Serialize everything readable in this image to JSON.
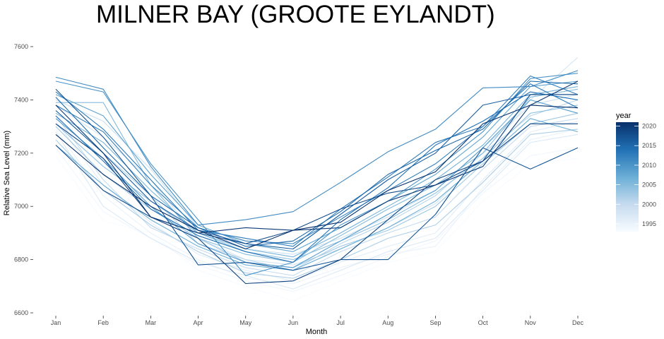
{
  "chart_data": {
    "type": "line",
    "title": "MILNER BAY (GROOTE EYLANDT)",
    "xlabel": "Month",
    "ylabel": "Relative Sea Level (mm)",
    "categories": [
      "Jan",
      "Feb",
      "Mar",
      "Apr",
      "May",
      "Jun",
      "Jul",
      "Aug",
      "Sep",
      "Oct",
      "Nov",
      "Dec"
    ],
    "ylim": [
      6600,
      7620
    ],
    "yticks": [
      6600,
      6800,
      7000,
      7200,
      7400,
      7600
    ],
    "ytick_labels": [
      "6600",
      "6800",
      "7000",
      "7200",
      "7400",
      "7600"
    ],
    "grid": false,
    "legend": {
      "title": "year",
      "position": "right",
      "type": "colorbar",
      "range": [
        1993,
        2021
      ],
      "ticks": [
        1995,
        2000,
        2005,
        2010,
        2015,
        2020
      ],
      "tick_labels": [
        "1995",
        "2000",
        "2005",
        "2010",
        "2015",
        "2020"
      ],
      "color_low": "#f7fbff",
      "color_high": "#08306b"
    },
    "series": [
      {
        "year": 1993,
        "values": [
          7190,
          6945,
          6900,
          6760,
          6700,
          6645,
          6720,
          6790,
          6830,
          7020,
          7160,
          7180
        ]
      },
      {
        "year": 1994,
        "values": [
          7220,
          6980,
          6880,
          6780,
          6720,
          6680,
          6740,
          6810,
          6870,
          7050,
          7190,
          7220
        ]
      },
      {
        "year": 1995,
        "values": [
          7290,
          7040,
          6900,
          6800,
          6730,
          6710,
          6770,
          6820,
          6850,
          7070,
          7250,
          7290
        ]
      },
      {
        "year": 1996,
        "values": [
          7320,
          7080,
          6940,
          6820,
          6760,
          6720,
          6790,
          6850,
          6900,
          7100,
          7280,
          7320
        ]
      },
      {
        "year": 1997,
        "values": [
          7280,
          7000,
          6880,
          6790,
          6740,
          6690,
          6760,
          6830,
          6880,
          7060,
          7240,
          7270
        ]
      },
      {
        "year": 1998,
        "values": [
          7380,
          7260,
          7100,
          6880,
          6800,
          6780,
          6840,
          6920,
          7010,
          7180,
          7400,
          7560
        ]
      },
      {
        "year": 1999,
        "values": [
          7400,
          7320,
          7140,
          6920,
          6840,
          6820,
          6880,
          6960,
          7060,
          7220,
          7380,
          7420
        ]
      },
      {
        "year": 2000,
        "values": [
          7340,
          7100,
          6920,
          6840,
          6770,
          6740,
          6830,
          6900,
          6960,
          7140,
          7300,
          7330
        ]
      },
      {
        "year": 2001,
        "values": [
          7360,
          7200,
          7040,
          6860,
          6800,
          6760,
          6860,
          6940,
          7040,
          7200,
          7340,
          7400
        ]
      },
      {
        "year": 2002,
        "values": [
          7250,
          7060,
          6930,
          6830,
          6750,
          6730,
          6800,
          6880,
          6930,
          7090,
          7270,
          7290
        ]
      },
      {
        "year": 2003,
        "values": [
          7300,
          7120,
          6990,
          6880,
          6790,
          6770,
          6850,
          6910,
          7000,
          7160,
          7310,
          7350
        ]
      },
      {
        "year": 2004,
        "values": [
          7310,
          7150,
          7020,
          6900,
          6830,
          6800,
          6870,
          6950,
          7050,
          7180,
          7350,
          7380
        ]
      },
      {
        "year": 2005,
        "values": [
          7390,
          7390,
          7080,
          6880,
          6820,
          6790,
          6890,
          6990,
          7080,
          7200,
          7410,
          7440
        ]
      },
      {
        "year": 2006,
        "values": [
          7350,
          7240,
          7060,
          6900,
          6840,
          6810,
          6900,
          7000,
          7100,
          7230,
          7420,
          7450
        ]
      },
      {
        "year": 2007,
        "values": [
          7230,
          7080,
          6950,
          6850,
          6780,
          6760,
          6840,
          6920,
          7020,
          7170,
          7330,
          7280
        ]
      },
      {
        "year": 2008,
        "values": [
          7420,
          7340,
          7120,
          6930,
          6860,
          6830,
          6920,
          7020,
          7120,
          7260,
          7450,
          7470
        ]
      },
      {
        "year": 2009,
        "values": [
          7330,
          7180,
          7000,
          6860,
          6790,
          6770,
          6870,
          6970,
          7060,
          7220,
          7400,
          7350
        ]
      },
      {
        "year": 2010,
        "values": [
          7470,
          7430,
          7160,
          6950,
          6740,
          6790,
          6930,
          7020,
          7140,
          7280,
          7480,
          7500
        ]
      },
      {
        "year": 2011,
        "values": [
          7485,
          7440,
          7150,
          6930,
          6950,
          6980,
          7090,
          7205,
          7290,
          7445,
          7450,
          7510
        ]
      },
      {
        "year": 2012,
        "values": [
          7380,
          7280,
          7080,
          6920,
          6870,
          6860,
          6960,
          7060,
          7160,
          7300,
          7490,
          7420
        ]
      },
      {
        "year": 2013,
        "values": [
          7430,
          7290,
          7100,
          6910,
          6880,
          6850,
          6990,
          7110,
          7240,
          7300,
          7460,
          7370
        ]
      },
      {
        "year": 2014,
        "values": [
          7340,
          7170,
          6990,
          6890,
          6830,
          6790,
          6950,
          7070,
          7230,
          7320,
          7430,
          7400
        ]
      },
      {
        "year": 2015,
        "values": [
          7410,
          7220,
          7040,
          6920,
          6850,
          6870,
          6980,
          7120,
          7210,
          7290,
          7470,
          7460
        ]
      },
      {
        "year": 2016,
        "values": [
          7360,
          7200,
          7020,
          6910,
          6860,
          6840,
          6970,
          7100,
          7200,
          7380,
          7420,
          7420
        ]
      },
      {
        "year": 2017,
        "values": [
          7440,
          7260,
          7040,
          6780,
          6790,
          6760,
          6800,
          6800,
          6970,
          7220,
          7140,
          7220
        ]
      },
      {
        "year": 2018,
        "values": [
          7230,
          7060,
          6960,
          6900,
          6860,
          6910,
          6990,
          7050,
          7080,
          7170,
          7420,
          7420
        ]
      },
      {
        "year": 2019,
        "values": [
          7310,
          7180,
          6960,
          6880,
          6710,
          6720,
          6800,
          6950,
          7100,
          7170,
          7310,
          7310
        ]
      },
      {
        "year": 2020,
        "values": [
          7380,
          7200,
          6960,
          6900,
          6920,
          6910,
          6920,
          7020,
          7080,
          7150,
          7380,
          7470
        ]
      },
      {
        "year": 2021,
        "values": [
          7270,
          7120,
          7000,
          6910,
          6840,
          6910,
          6940,
          7060,
          7130,
          7310,
          7380,
          7370
        ]
      }
    ]
  }
}
